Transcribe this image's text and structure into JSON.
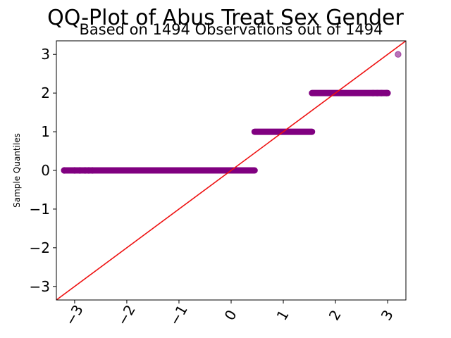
{
  "chart_data": {
    "type": "scatter",
    "title": "QQ-Plot of Abus Treat Sex Gender",
    "subtitle": "Based on 1494 Observations out of 1494",
    "xlabel": "",
    "ylabel": "Sample Quantiles",
    "xlim": [
      -3.35,
      3.35
    ],
    "ylim": [
      -3.35,
      3.35
    ],
    "xticks": [
      -3,
      -2,
      -1,
      0,
      1,
      2,
      3
    ],
    "yticks": [
      -3,
      -2,
      -1,
      0,
      1,
      2,
      3
    ],
    "xtick_labels": [
      "−3",
      "−2",
      "−1",
      "0",
      "1",
      "2",
      "3"
    ],
    "ytick_labels": [
      "−3",
      "−2",
      "−1",
      "0",
      "1",
      "2",
      "3"
    ],
    "grid": false,
    "reference_line": {
      "slope": 1,
      "intercept": 0,
      "color": "#ee1111"
    },
    "point_color": "#800080",
    "series": [
      {
        "values": [
          {
            "y": 0,
            "x_from": -3.2,
            "x_to": 0.45,
            "isolated_x": [
              -3.2,
              -3.0,
              -2.9,
              -2.8,
              -2.73,
              -2.66
            ]
          },
          {
            "y": 1,
            "x_from": 0.45,
            "x_to": 1.55,
            "isolated_x": []
          },
          {
            "y": 2,
            "x_from": 1.55,
            "x_to": 3.0,
            "isolated_x": [
              2.72,
              2.8,
              2.88,
              2.98
            ]
          },
          {
            "y": 3,
            "x_from": 3.2,
            "x_to": 3.2,
            "isolated_x": [
              3.2
            ]
          }
        ]
      }
    ]
  }
}
